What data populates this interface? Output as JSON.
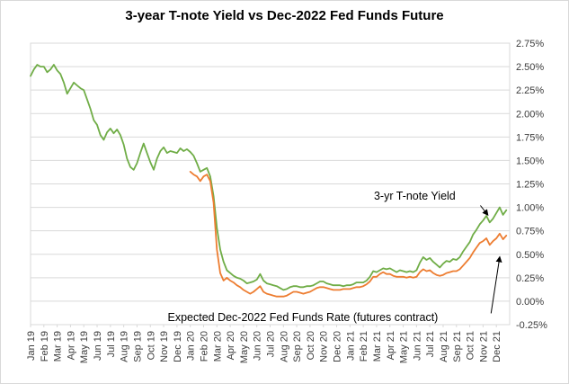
{
  "chart_data": {
    "type": "line",
    "title": "3-year T-note Yield vs Dec-2022 Fed Funds Future",
    "xlabel": "",
    "ylabel": "",
    "x_tick_labels": [
      "Jan 19",
      "Feb 19",
      "Mar 19",
      "Apr 19",
      "May 19",
      "Jun 19",
      "Jul 19",
      "Aug 19",
      "Sep 19",
      "Oct 19",
      "Nov 19",
      "Dec 19",
      "Jan 20",
      "Feb 20",
      "Mar 20",
      "Apr 20",
      "May 20",
      "Jun 20",
      "Jul 20",
      "Aug 20",
      "Sep 20",
      "Oct 20",
      "Nov 20",
      "Dec 20",
      "Jan 21",
      "Feb 21",
      "Mar 21",
      "Apr 21",
      "May 21",
      "Jun 21",
      "Jul 21",
      "Aug 21",
      "Sep 21",
      "Oct 21",
      "Nov 21",
      "Dec 21"
    ],
    "x_range": [
      0,
      36
    ],
    "y_range": [
      -0.25,
      2.75
    ],
    "y_tick_step": 0.25,
    "y_tick_suffix": "%",
    "y_axis_side": "right",
    "grid": true,
    "legend": "none",
    "colors": {
      "tnote": "#70AD47",
      "fedfunds": "#ED7D31",
      "grid": "#D9D9D9",
      "axis_text": "#3b3b3b",
      "annotation": "#000000"
    },
    "series": [
      {
        "id": "tnote",
        "name": "3-yr T-note Yield",
        "color": "#70AD47",
        "x_start": 0,
        "x_step": 0.25,
        "values": [
          2.4,
          2.47,
          2.52,
          2.5,
          2.5,
          2.44,
          2.47,
          2.52,
          2.46,
          2.42,
          2.33,
          2.21,
          2.27,
          2.33,
          2.3,
          2.27,
          2.25,
          2.15,
          2.05,
          1.93,
          1.88,
          1.77,
          1.72,
          1.8,
          1.84,
          1.79,
          1.83,
          1.77,
          1.67,
          1.52,
          1.43,
          1.4,
          1.47,
          1.58,
          1.68,
          1.58,
          1.48,
          1.4,
          1.52,
          1.6,
          1.64,
          1.58,
          1.6,
          1.59,
          1.58,
          1.63,
          1.6,
          1.62,
          1.59,
          1.55,
          1.47,
          1.38,
          1.4,
          1.42,
          1.33,
          1.12,
          0.78,
          0.55,
          0.42,
          0.33,
          0.3,
          0.27,
          0.25,
          0.24,
          0.22,
          0.19,
          0.2,
          0.21,
          0.23,
          0.29,
          0.22,
          0.19,
          0.18,
          0.17,
          0.16,
          0.14,
          0.12,
          0.13,
          0.15,
          0.16,
          0.16,
          0.15,
          0.15,
          0.16,
          0.16,
          0.17,
          0.19,
          0.21,
          0.21,
          0.19,
          0.18,
          0.17,
          0.17,
          0.17,
          0.16,
          0.17,
          0.17,
          0.18,
          0.2,
          0.2,
          0.2,
          0.22,
          0.26,
          0.32,
          0.31,
          0.33,
          0.35,
          0.34,
          0.35,
          0.33,
          0.31,
          0.33,
          0.32,
          0.31,
          0.32,
          0.31,
          0.33,
          0.41,
          0.47,
          0.44,
          0.46,
          0.42,
          0.39,
          0.36,
          0.4,
          0.43,
          0.42,
          0.45,
          0.44,
          0.47,
          0.53,
          0.58,
          0.63,
          0.71,
          0.76,
          0.82,
          0.86,
          0.91,
          0.84,
          0.88,
          0.94,
          1.0,
          0.92,
          0.97
        ]
      },
      {
        "id": "fedfunds",
        "name": "Expected Dec-2022 Fed Funds Rate (futures contract)",
        "color": "#ED7D31",
        "x_start": 12,
        "x_step": 0.25,
        "values": [
          1.38,
          1.35,
          1.33,
          1.28,
          1.33,
          1.35,
          1.28,
          1.05,
          0.55,
          0.3,
          0.22,
          0.25,
          0.22,
          0.2,
          0.17,
          0.15,
          0.12,
          0.1,
          0.08,
          0.1,
          0.13,
          0.16,
          0.1,
          0.08,
          0.07,
          0.06,
          0.05,
          0.05,
          0.05,
          0.06,
          0.08,
          0.1,
          0.1,
          0.09,
          0.08,
          0.09,
          0.1,
          0.12,
          0.14,
          0.15,
          0.15,
          0.14,
          0.13,
          0.12,
          0.12,
          0.12,
          0.13,
          0.13,
          0.13,
          0.14,
          0.15,
          0.15,
          0.16,
          0.18,
          0.21,
          0.26,
          0.26,
          0.29,
          0.31,
          0.29,
          0.29,
          0.27,
          0.26,
          0.26,
          0.26,
          0.25,
          0.26,
          0.25,
          0.26,
          0.31,
          0.34,
          0.32,
          0.33,
          0.3,
          0.28,
          0.27,
          0.28,
          0.3,
          0.31,
          0.32,
          0.32,
          0.34,
          0.38,
          0.42,
          0.46,
          0.52,
          0.57,
          0.62,
          0.64,
          0.67,
          0.6,
          0.64,
          0.67,
          0.72,
          0.66,
          0.7
        ]
      }
    ],
    "annotations": [
      {
        "id": "tnote-annotation",
        "text": "3-yr T-note Yield",
        "x": 25.8,
        "y": 1.08,
        "anchor": "start",
        "arrow": [
          33.8,
          1.02,
          34.35,
          0.92
        ]
      },
      {
        "id": "fedfunds-annotation",
        "text": "Expected Dec-2022 Fed Funds Rate (futures contract)",
        "x": 10.3,
        "y": -0.21,
        "anchor": "start",
        "arrow": [
          34.6,
          -0.13,
          35.25,
          0.47
        ]
      }
    ]
  }
}
